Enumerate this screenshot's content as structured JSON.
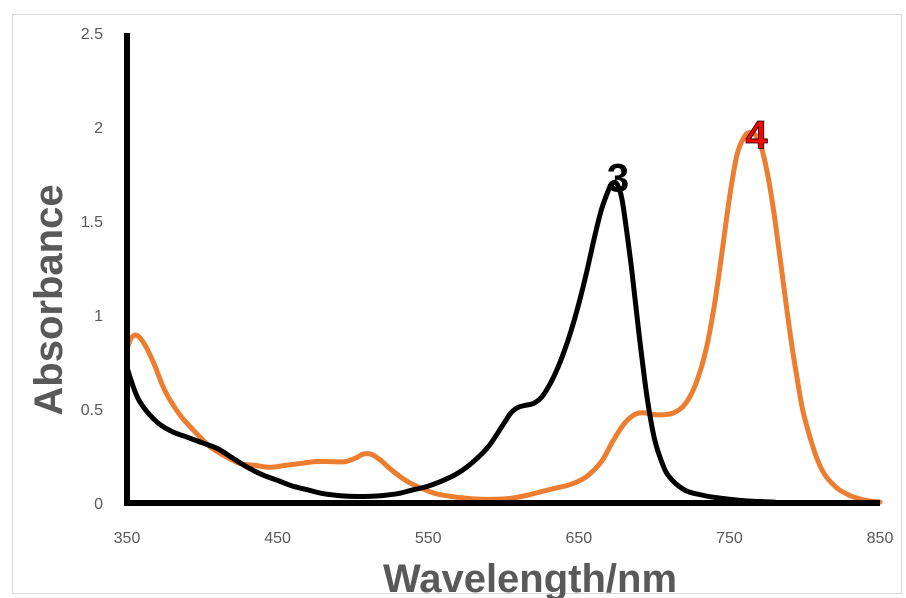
{
  "chart_data": {
    "type": "line",
    "title": "",
    "xlabel": "Wavelength/nm",
    "ylabel": "Absorbance",
    "xlim": [
      350,
      850
    ],
    "ylim": [
      0,
      2.5
    ],
    "x_ticks": [
      "350",
      "450",
      "550",
      "650",
      "750",
      "850"
    ],
    "y_ticks": [
      "0",
      "0.5",
      "1",
      "1.5",
      "2",
      "2.5"
    ],
    "grid": false,
    "legend": "none",
    "series": [
      {
        "color": "#000000",
        "x": [
          350,
          355,
          360,
          370,
          380,
          390,
          400,
          410,
          420,
          430,
          440,
          450,
          460,
          470,
          480,
          490,
          500,
          510,
          520,
          530,
          540,
          550,
          560,
          570,
          580,
          590,
          600,
          605,
          610,
          615,
          620,
          625,
          630,
          635,
          640,
          645,
          650,
          655,
          660,
          665,
          670,
          672,
          675,
          678,
          680,
          685,
          690,
          695,
          700,
          705,
          710,
          720,
          730,
          740,
          750,
          760,
          770,
          780
        ],
        "y": [
          0.72,
          0.6,
          0.52,
          0.43,
          0.38,
          0.35,
          0.32,
          0.29,
          0.24,
          0.19,
          0.15,
          0.12,
          0.09,
          0.07,
          0.05,
          0.04,
          0.035,
          0.035,
          0.04,
          0.05,
          0.07,
          0.09,
          0.12,
          0.16,
          0.22,
          0.3,
          0.42,
          0.48,
          0.51,
          0.52,
          0.53,
          0.56,
          0.62,
          0.7,
          0.8,
          0.92,
          1.06,
          1.22,
          1.4,
          1.56,
          1.67,
          1.7,
          1.7,
          1.64,
          1.55,
          1.25,
          0.9,
          0.58,
          0.35,
          0.22,
          0.14,
          0.07,
          0.045,
          0.03,
          0.02,
          0.012,
          0.008,
          0.005
        ]
      },
      {
        "color": "#ed7d31",
        "x": [
          350,
          353,
          357,
          362,
          368,
          375,
          385,
          395,
          405,
          415,
          425,
          435,
          445,
          455,
          465,
          475,
          485,
          495,
          502,
          507,
          512,
          518,
          525,
          535,
          545,
          555,
          565,
          575,
          585,
          595,
          605,
          615,
          625,
          635,
          645,
          655,
          665,
          672,
          680,
          687,
          693,
          700,
          707,
          713,
          720,
          727,
          734,
          740,
          745,
          750,
          755,
          760,
          764,
          768,
          772,
          776,
          780,
          785,
          790,
          795,
          800,
          810,
          820,
          830,
          840,
          850
        ],
        "y": [
          0.82,
          0.88,
          0.89,
          0.84,
          0.74,
          0.6,
          0.47,
          0.38,
          0.3,
          0.25,
          0.21,
          0.2,
          0.19,
          0.2,
          0.21,
          0.22,
          0.22,
          0.22,
          0.24,
          0.26,
          0.26,
          0.23,
          0.18,
          0.12,
          0.08,
          0.05,
          0.035,
          0.025,
          0.02,
          0.02,
          0.025,
          0.04,
          0.06,
          0.08,
          0.1,
          0.14,
          0.22,
          0.32,
          0.42,
          0.47,
          0.48,
          0.47,
          0.47,
          0.48,
          0.52,
          0.62,
          0.8,
          1.05,
          1.33,
          1.62,
          1.85,
          1.95,
          1.97,
          1.95,
          1.87,
          1.72,
          1.52,
          1.22,
          0.92,
          0.66,
          0.45,
          0.2,
          0.09,
          0.04,
          0.015,
          0.005
        ]
      }
    ],
    "annotations": [
      {
        "text": "3",
        "x": 676,
        "y": 1.72,
        "color": "#000000"
      },
      {
        "text": "4",
        "x": 768,
        "y": 1.95,
        "color": "#ff0000"
      }
    ]
  }
}
